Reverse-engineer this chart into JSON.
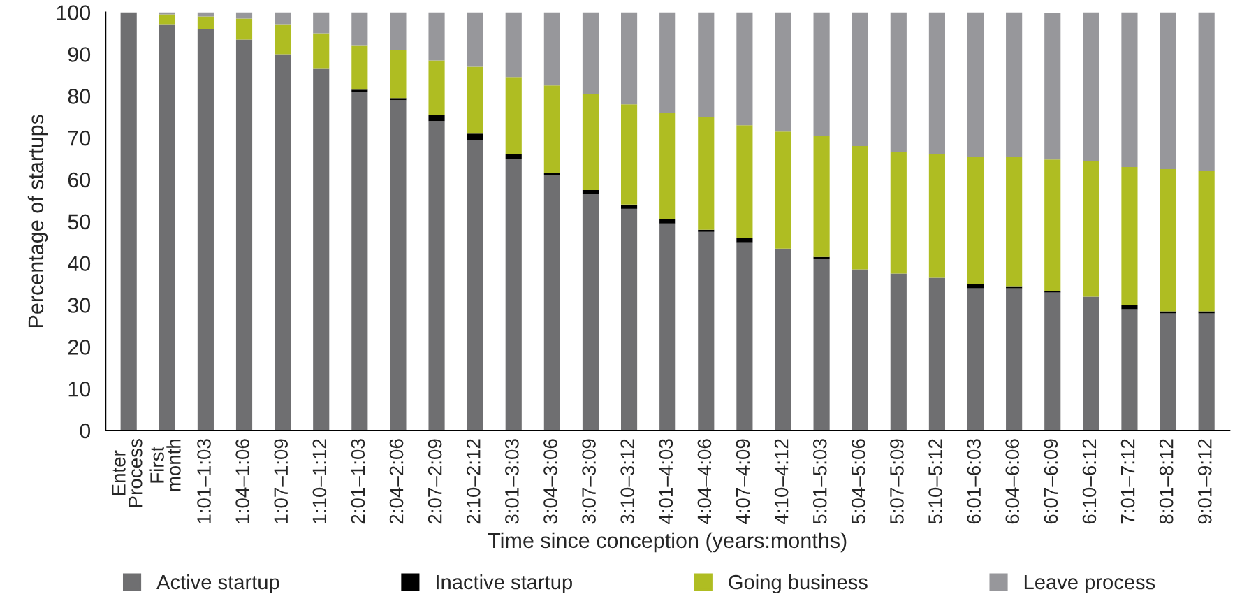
{
  "chart_data": {
    "type": "bar",
    "stacked": true,
    "xlabel": "Time since conception (years:months)",
    "ylabel": "Percentage of startups",
    "categories": [
      "Enter\nProcess",
      "First\nmonth",
      "1:01–1:03",
      "1:04–1:06",
      "1:07–1:09",
      "1:10–1:12",
      "2:01–1:03",
      "2:04–2:06",
      "2:07–2:09",
      "2:10–2:12",
      "3:01–3:03",
      "3:04–3:06",
      "3:07–3:09",
      "3:10–3:12",
      "4:01–4:03",
      "4:04–4:06",
      "4:07–4:09",
      "4:10–4:12",
      "5:01–5:03",
      "5:04–5:06",
      "5:07–5:09",
      "5:10–5:12",
      "6:01–6:03",
      "6:04–6:06",
      "6:07–6:09",
      "6:10–6:12",
      "7:01–7:12",
      "8:01–8:12",
      "9:01–9:12"
    ],
    "series": [
      {
        "name": "Active startup",
        "color": "#6f6f71",
        "values": [
          100,
          97,
          96,
          93.5,
          90,
          86.5,
          81,
          79,
          74,
          69.5,
          65,
          61,
          56.5,
          53,
          49.5,
          47.5,
          45,
          43.5,
          41,
          38.5,
          37.5,
          36.5,
          34,
          34,
          33,
          32,
          29,
          28,
          28
        ]
      },
      {
        "name": "Inactive startup",
        "color": "#000000",
        "values": [
          0,
          0,
          0,
          0,
          0,
          0,
          0.5,
          0.5,
          1.5,
          1.5,
          1,
          0.5,
          1,
          1,
          1,
          0.5,
          1,
          0,
          0.5,
          0,
          0,
          0,
          1,
          0.5,
          0.3,
          0,
          1,
          0.5,
          0.5
        ]
      },
      {
        "name": "Going business",
        "color": "#afbd22",
        "values": [
          0,
          2.5,
          3,
          5,
          7,
          8.5,
          10.5,
          11.5,
          13,
          16,
          18.5,
          21,
          23,
          24,
          25.5,
          27,
          27,
          28,
          29,
          29.5,
          29,
          29.5,
          30.5,
          31,
          31.5,
          32.5,
          33,
          34,
          33.5
        ]
      },
      {
        "name": "Leave process",
        "color": "#97979b",
        "values": [
          0,
          0.5,
          1,
          1.5,
          3,
          5,
          8,
          9,
          11.5,
          13,
          15.5,
          17.5,
          19.5,
          22,
          24,
          25,
          27,
          28.5,
          29.5,
          32,
          33.5,
          34,
          34.5,
          34.5,
          35,
          35.5,
          37,
          37.5,
          38
        ]
      }
    ],
    "ylim": [
      0,
      100
    ],
    "yticks": [
      0,
      10,
      20,
      30,
      40,
      50,
      60,
      70,
      80,
      90,
      100
    ],
    "grid": false,
    "legend": "bottom"
  }
}
